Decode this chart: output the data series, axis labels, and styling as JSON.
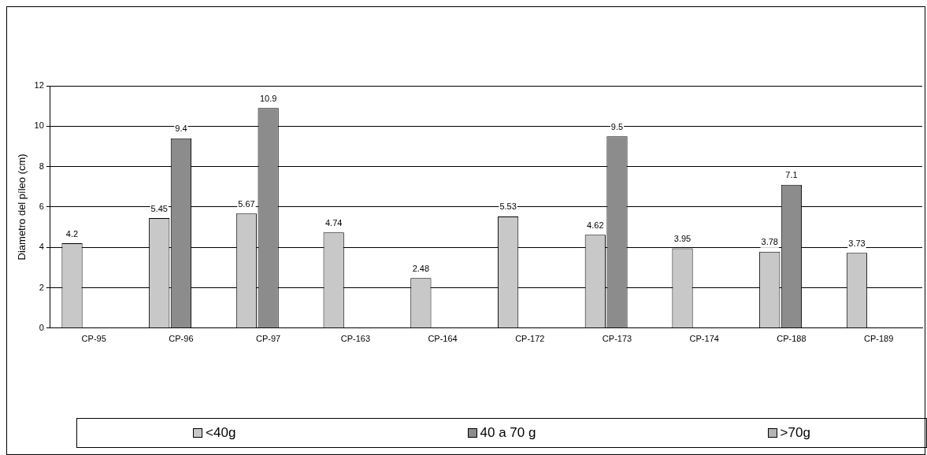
{
  "chart_data": {
    "type": "bar",
    "ylabel": "Diametro del píleo (cm)",
    "categories": [
      "CP-95",
      "CP-96",
      "CP-97",
      "CP-163",
      "CP-164",
      "CP-172",
      "CP-173",
      "CP-174",
      "CP-188",
      "CP-189"
    ],
    "series": [
      {
        "name": "<40g",
        "color": "#c8c8c8",
        "values": [
          4.2,
          5.45,
          5.67,
          4.74,
          2.48,
          5.53,
          4.62,
          3.95,
          3.78,
          3.73
        ]
      },
      {
        "name": "40 a 70 g",
        "color": "#8c8c8c",
        "values": [
          null,
          9.4,
          10.9,
          null,
          null,
          null,
          9.5,
          null,
          7.1,
          null
        ]
      },
      {
        "name": ">70g",
        "color": "#b4b4b4",
        "values": [
          null,
          null,
          null,
          null,
          null,
          null,
          null,
          null,
          null,
          null
        ]
      }
    ],
    "ylim": [
      0,
      12
    ],
    "yticks": [
      0,
      2,
      4,
      6,
      8,
      10,
      12
    ],
    "grid": "y",
    "legend": "bottom",
    "data_labels": true
  }
}
